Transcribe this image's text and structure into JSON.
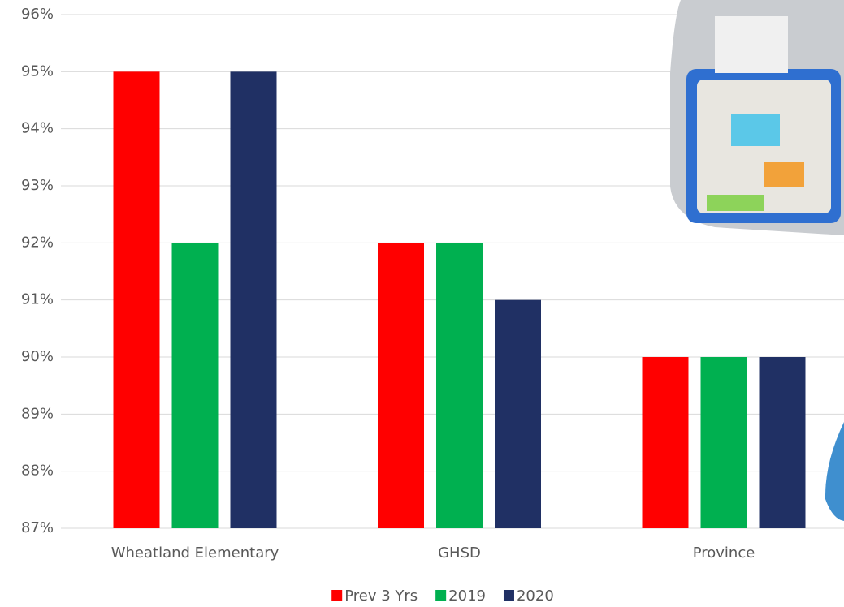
{
  "chart_data": {
    "type": "bar",
    "categories": [
      "Wheatland Elementary",
      "GHSD",
      "Province"
    ],
    "series": [
      {
        "name": "Prev 3 Yrs",
        "color": "#ff0000",
        "values": [
          95,
          92,
          90
        ]
      },
      {
        "name": "2019",
        "color": "#00b050",
        "values": [
          92,
          92,
          90
        ]
      },
      {
        "name": "2020",
        "color": "#203064",
        "values": [
          95,
          91,
          90
        ]
      }
    ],
    "ylim": [
      87,
      96
    ],
    "yticks": [
      {
        "value": 87,
        "label": "87%"
      },
      {
        "value": 88,
        "label": "88%"
      },
      {
        "value": 89,
        "label": "89%"
      },
      {
        "value": 90,
        "label": "90%"
      },
      {
        "value": 91,
        "label": "91%"
      },
      {
        "value": 92,
        "label": "92%"
      },
      {
        "value": 93,
        "label": "93%"
      },
      {
        "value": 94,
        "label": "94%"
      },
      {
        "value": 95,
        "label": "95%"
      },
      {
        "value": 96,
        "label": "96%"
      }
    ],
    "grid": true,
    "legend": "bottom"
  }
}
